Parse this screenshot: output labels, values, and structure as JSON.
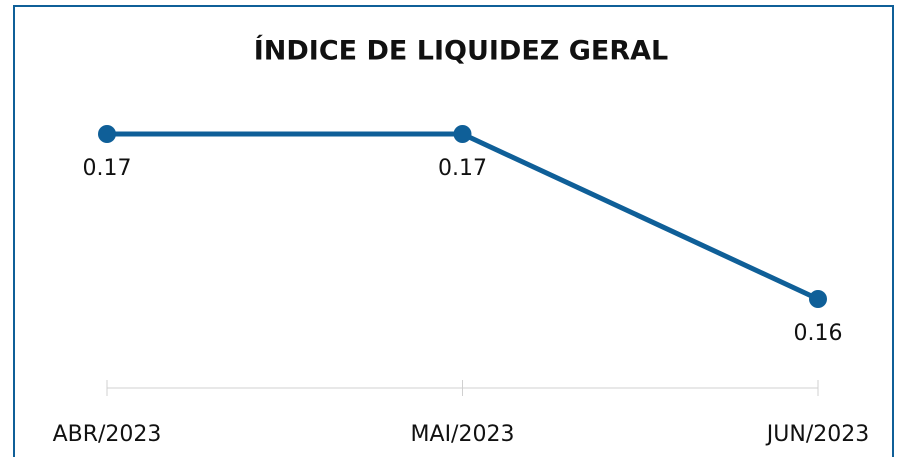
{
  "chart_data": {
    "type": "line",
    "title": "ÍNDICE DE LIQUIDEZ GERAL",
    "categories": [
      "ABR/2023",
      "MAI/2023",
      "JUN/2023"
    ],
    "series": [
      {
        "color": "#0f5f98",
        "values": [
          0.17,
          0.17,
          0.16
        ]
      }
    ]
  }
}
